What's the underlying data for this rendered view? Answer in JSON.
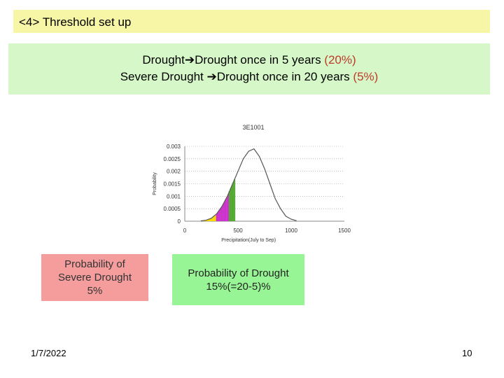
{
  "slide": {
    "title": "<4> Threshold set up",
    "definitions": {
      "line1_prefix": "Drought",
      "line1_mid": "Drought once in   5 years ",
      "line1_pct": "(20%)",
      "line2_prefix": "Severe Drought ",
      "line2_mid": "Drought once in 20 years ",
      "line2_pct": "(5%)"
    },
    "callouts": {
      "severe": [
        "Probability of",
        "Severe Drought",
        "5%"
      ],
      "drought": [
        "Probability of Drought",
        "15%(=20-5)%"
      ]
    },
    "footer": {
      "date": "1/7/2022",
      "page": "10"
    },
    "colors": {
      "title_bg": "#f7f5a6",
      "def_bg": "#d6f8c8",
      "highlight": "#c0392b",
      "severe_callout": "#f59d9d",
      "drought_callout": "#98f595"
    }
  },
  "chart_data": {
    "type": "area",
    "title": "3E1001",
    "xlabel": "Precipitation(July to Sep)",
    "ylabel": "Probability",
    "xlim": [
      0,
      1500
    ],
    "ylim": [
      0,
      0.003
    ],
    "xticks": [
      0,
      500,
      1000,
      1500
    ],
    "yticks": [
      0,
      0.0005,
      0.001,
      0.0015,
      0.002,
      0.0025,
      0.003
    ],
    "ytick_labels": [
      "0",
      "0.0005",
      "0.001",
      "0.0015",
      "0.002",
      "0.0025",
      "0.003"
    ],
    "grid": true,
    "series": [
      {
        "x": [
          150,
          200,
          250,
          300,
          350,
          400,
          450,
          500,
          550,
          600,
          650,
          700,
          750,
          800,
          850,
          900,
          950,
          1000,
          1050
        ],
        "values": [
          1e-05,
          4e-05,
          0.00012,
          0.0003,
          0.0006,
          0.001,
          0.0015,
          0.002,
          0.0025,
          0.0028,
          0.0029,
          0.0026,
          0.0021,
          0.0015,
          0.0009,
          0.0005,
          0.0002,
          8e-05,
          2e-05
        ]
      }
    ],
    "shaded_regions": [
      {
        "from": 150,
        "to": 300,
        "color": "#f8d800"
      },
      {
        "from": 300,
        "to": 420,
        "color": "#cc33cc"
      },
      {
        "from": 420,
        "to": 470,
        "color": "#55aa33"
      }
    ]
  }
}
